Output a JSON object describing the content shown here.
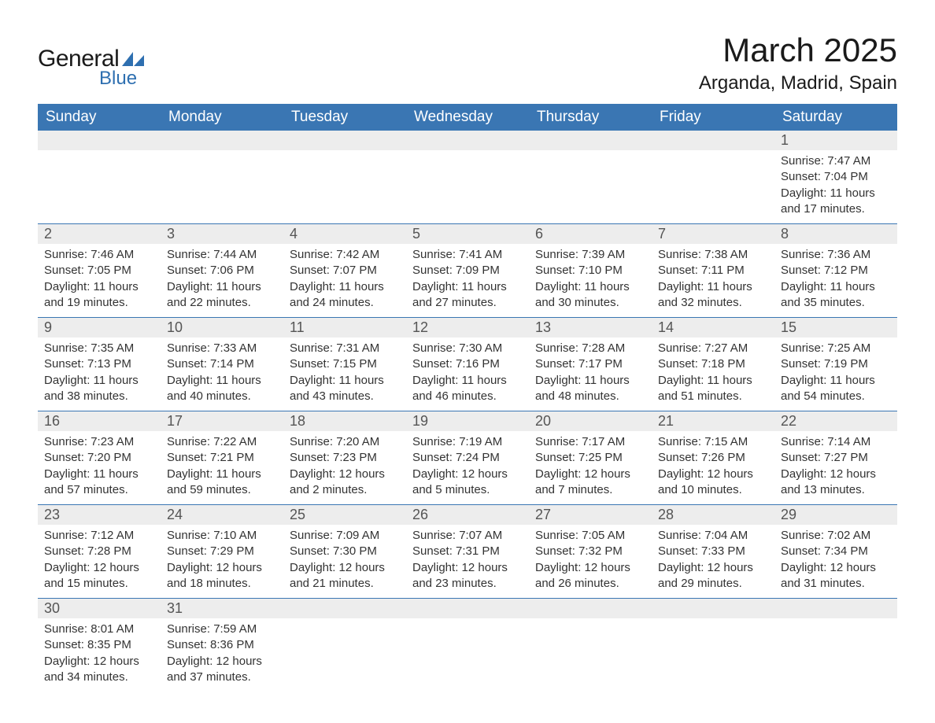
{
  "brand": {
    "general": "General",
    "blue": "Blue"
  },
  "colors": {
    "header_bg": "#3a76b3",
    "header_text": "#ffffff",
    "daynum_bg": "#ededed",
    "row_border": "#3a76b3",
    "logo_blue": "#2e6fb0",
    "body_text": "#333333",
    "background": "#ffffff"
  },
  "typography": {
    "month_title_fontsize": 42,
    "location_fontsize": 24,
    "weekday_fontsize": 19,
    "daynum_fontsize": 18,
    "body_fontsize": 15
  },
  "title": "March 2025",
  "location": "Arganda, Madrid, Spain",
  "weekdays": [
    "Sunday",
    "Monday",
    "Tuesday",
    "Wednesday",
    "Thursday",
    "Friday",
    "Saturday"
  ],
  "calendar": {
    "type": "table",
    "columns": 7,
    "weeks": [
      [
        null,
        null,
        null,
        null,
        null,
        null,
        {
          "n": "1",
          "sunrise": "Sunrise: 7:47 AM",
          "sunset": "Sunset: 7:04 PM",
          "day1": "Daylight: 11 hours",
          "day2": "and 17 minutes."
        }
      ],
      [
        {
          "n": "2",
          "sunrise": "Sunrise: 7:46 AM",
          "sunset": "Sunset: 7:05 PM",
          "day1": "Daylight: 11 hours",
          "day2": "and 19 minutes."
        },
        {
          "n": "3",
          "sunrise": "Sunrise: 7:44 AM",
          "sunset": "Sunset: 7:06 PM",
          "day1": "Daylight: 11 hours",
          "day2": "and 22 minutes."
        },
        {
          "n": "4",
          "sunrise": "Sunrise: 7:42 AM",
          "sunset": "Sunset: 7:07 PM",
          "day1": "Daylight: 11 hours",
          "day2": "and 24 minutes."
        },
        {
          "n": "5",
          "sunrise": "Sunrise: 7:41 AM",
          "sunset": "Sunset: 7:09 PM",
          "day1": "Daylight: 11 hours",
          "day2": "and 27 minutes."
        },
        {
          "n": "6",
          "sunrise": "Sunrise: 7:39 AM",
          "sunset": "Sunset: 7:10 PM",
          "day1": "Daylight: 11 hours",
          "day2": "and 30 minutes."
        },
        {
          "n": "7",
          "sunrise": "Sunrise: 7:38 AM",
          "sunset": "Sunset: 7:11 PM",
          "day1": "Daylight: 11 hours",
          "day2": "and 32 minutes."
        },
        {
          "n": "8",
          "sunrise": "Sunrise: 7:36 AM",
          "sunset": "Sunset: 7:12 PM",
          "day1": "Daylight: 11 hours",
          "day2": "and 35 minutes."
        }
      ],
      [
        {
          "n": "9",
          "sunrise": "Sunrise: 7:35 AM",
          "sunset": "Sunset: 7:13 PM",
          "day1": "Daylight: 11 hours",
          "day2": "and 38 minutes."
        },
        {
          "n": "10",
          "sunrise": "Sunrise: 7:33 AM",
          "sunset": "Sunset: 7:14 PM",
          "day1": "Daylight: 11 hours",
          "day2": "and 40 minutes."
        },
        {
          "n": "11",
          "sunrise": "Sunrise: 7:31 AM",
          "sunset": "Sunset: 7:15 PM",
          "day1": "Daylight: 11 hours",
          "day2": "and 43 minutes."
        },
        {
          "n": "12",
          "sunrise": "Sunrise: 7:30 AM",
          "sunset": "Sunset: 7:16 PM",
          "day1": "Daylight: 11 hours",
          "day2": "and 46 minutes."
        },
        {
          "n": "13",
          "sunrise": "Sunrise: 7:28 AM",
          "sunset": "Sunset: 7:17 PM",
          "day1": "Daylight: 11 hours",
          "day2": "and 48 minutes."
        },
        {
          "n": "14",
          "sunrise": "Sunrise: 7:27 AM",
          "sunset": "Sunset: 7:18 PM",
          "day1": "Daylight: 11 hours",
          "day2": "and 51 minutes."
        },
        {
          "n": "15",
          "sunrise": "Sunrise: 7:25 AM",
          "sunset": "Sunset: 7:19 PM",
          "day1": "Daylight: 11 hours",
          "day2": "and 54 minutes."
        }
      ],
      [
        {
          "n": "16",
          "sunrise": "Sunrise: 7:23 AM",
          "sunset": "Sunset: 7:20 PM",
          "day1": "Daylight: 11 hours",
          "day2": "and 57 minutes."
        },
        {
          "n": "17",
          "sunrise": "Sunrise: 7:22 AM",
          "sunset": "Sunset: 7:21 PM",
          "day1": "Daylight: 11 hours",
          "day2": "and 59 minutes."
        },
        {
          "n": "18",
          "sunrise": "Sunrise: 7:20 AM",
          "sunset": "Sunset: 7:23 PM",
          "day1": "Daylight: 12 hours",
          "day2": "and 2 minutes."
        },
        {
          "n": "19",
          "sunrise": "Sunrise: 7:19 AM",
          "sunset": "Sunset: 7:24 PM",
          "day1": "Daylight: 12 hours",
          "day2": "and 5 minutes."
        },
        {
          "n": "20",
          "sunrise": "Sunrise: 7:17 AM",
          "sunset": "Sunset: 7:25 PM",
          "day1": "Daylight: 12 hours",
          "day2": "and 7 minutes."
        },
        {
          "n": "21",
          "sunrise": "Sunrise: 7:15 AM",
          "sunset": "Sunset: 7:26 PM",
          "day1": "Daylight: 12 hours",
          "day2": "and 10 minutes."
        },
        {
          "n": "22",
          "sunrise": "Sunrise: 7:14 AM",
          "sunset": "Sunset: 7:27 PM",
          "day1": "Daylight: 12 hours",
          "day2": "and 13 minutes."
        }
      ],
      [
        {
          "n": "23",
          "sunrise": "Sunrise: 7:12 AM",
          "sunset": "Sunset: 7:28 PM",
          "day1": "Daylight: 12 hours",
          "day2": "and 15 minutes."
        },
        {
          "n": "24",
          "sunrise": "Sunrise: 7:10 AM",
          "sunset": "Sunset: 7:29 PM",
          "day1": "Daylight: 12 hours",
          "day2": "and 18 minutes."
        },
        {
          "n": "25",
          "sunrise": "Sunrise: 7:09 AM",
          "sunset": "Sunset: 7:30 PM",
          "day1": "Daylight: 12 hours",
          "day2": "and 21 minutes."
        },
        {
          "n": "26",
          "sunrise": "Sunrise: 7:07 AM",
          "sunset": "Sunset: 7:31 PM",
          "day1": "Daylight: 12 hours",
          "day2": "and 23 minutes."
        },
        {
          "n": "27",
          "sunrise": "Sunrise: 7:05 AM",
          "sunset": "Sunset: 7:32 PM",
          "day1": "Daylight: 12 hours",
          "day2": "and 26 minutes."
        },
        {
          "n": "28",
          "sunrise": "Sunrise: 7:04 AM",
          "sunset": "Sunset: 7:33 PM",
          "day1": "Daylight: 12 hours",
          "day2": "and 29 minutes."
        },
        {
          "n": "29",
          "sunrise": "Sunrise: 7:02 AM",
          "sunset": "Sunset: 7:34 PM",
          "day1": "Daylight: 12 hours",
          "day2": "and 31 minutes."
        }
      ],
      [
        {
          "n": "30",
          "sunrise": "Sunrise: 8:01 AM",
          "sunset": "Sunset: 8:35 PM",
          "day1": "Daylight: 12 hours",
          "day2": "and 34 minutes."
        },
        {
          "n": "31",
          "sunrise": "Sunrise: 7:59 AM",
          "sunset": "Sunset: 8:36 PM",
          "day1": "Daylight: 12 hours",
          "day2": "and 37 minutes."
        },
        null,
        null,
        null,
        null,
        null
      ]
    ]
  }
}
